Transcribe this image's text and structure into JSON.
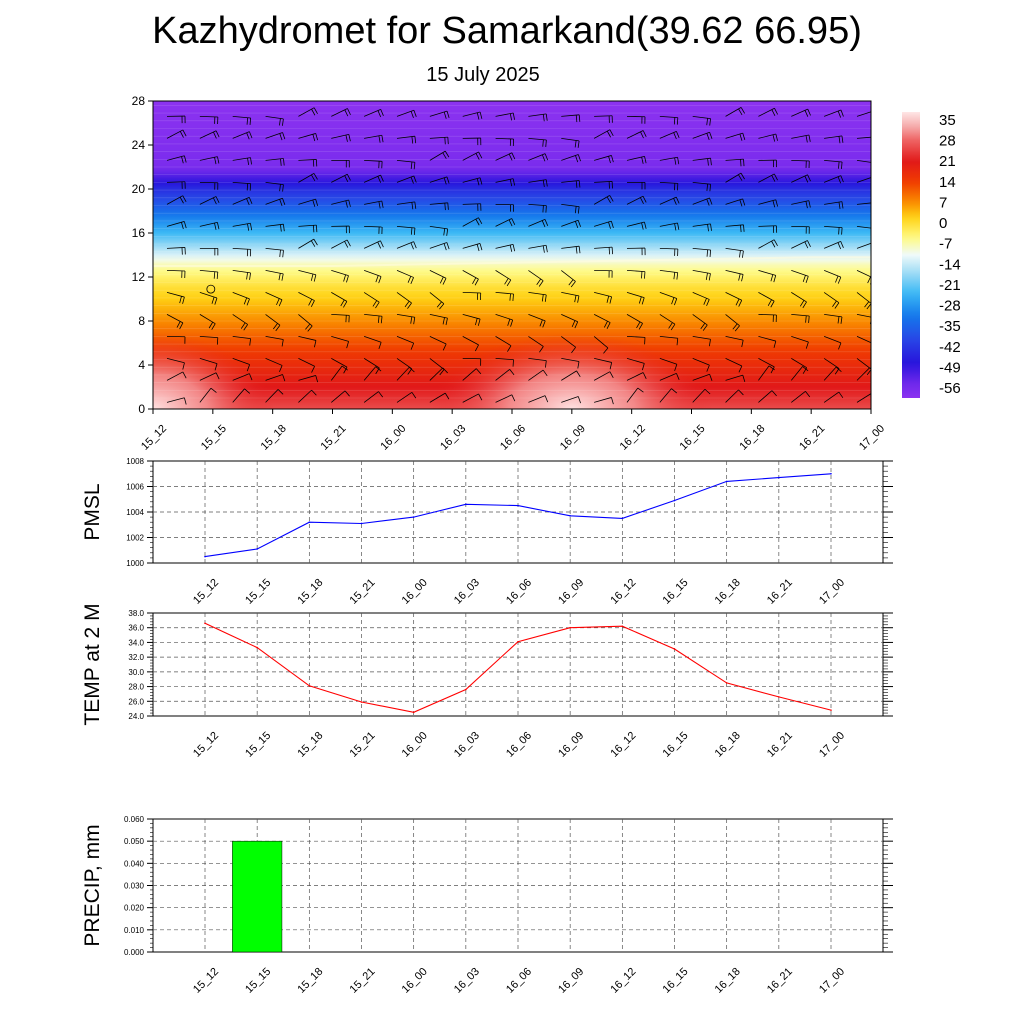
{
  "title": "Kazhydromet for Samarkand(39.62 66.95)",
  "subtitle": "15 July 2025",
  "time_labels": [
    "15_12",
    "15_15",
    "15_18",
    "15_21",
    "16_00",
    "16_03",
    "16_06",
    "16_09",
    "16_12",
    "16_15",
    "16_18",
    "16_21",
    "17_00"
  ],
  "chart_data": [
    {
      "type": "heatmap",
      "x": [
        "15_12",
        "15_15",
        "15_18",
        "15_21",
        "16_00",
        "16_03",
        "16_06",
        "16_09",
        "16_12",
        "16_15",
        "16_18",
        "16_21",
        "17_00"
      ],
      "y_ticks": [
        0,
        4,
        8,
        12,
        16,
        20,
        24,
        28
      ],
      "ylim": [
        0,
        28
      ],
      "colorbar_ticks": [
        "35",
        "28",
        "21",
        "14",
        "7",
        "0",
        "-7",
        "-14",
        "-21",
        "-28",
        "-35",
        "-42",
        "-49",
        "-56"
      ],
      "colorbar_range": [
        -60,
        38
      ],
      "freezing_level": [
        13.0,
        13.0,
        13.0,
        13.0,
        13.1,
        13.2,
        13.3,
        13.4,
        13.5,
        13.6,
        13.7,
        13.8,
        13.8
      ],
      "surface_warm_centers": [
        "15_12",
        "16_09"
      ],
      "overlay": "wind barbs",
      "grid": false
    },
    {
      "type": "line",
      "ylabel": "PMSL",
      "x": [
        "15_12",
        "15_15",
        "15_18",
        "15_21",
        "16_00",
        "16_03",
        "16_06",
        "16_09",
        "16_12",
        "16_15",
        "16_18",
        "16_21",
        "17_00"
      ],
      "y_ticks": [
        "1000",
        "1002",
        "1004",
        "1006",
        "1008"
      ],
      "ylim": [
        1000,
        1008
      ],
      "series": [
        {
          "values": [
            1000.5,
            1001.1,
            1003.2,
            1003.1,
            1003.6,
            1004.6,
            1004.5,
            1003.7,
            1003.5,
            1004.9,
            1006.4,
            1006.7,
            1007.0
          ],
          "color": "#0000ff"
        }
      ],
      "grid": true
    },
    {
      "type": "line",
      "ylabel": "TEMP at 2 M",
      "x": [
        "15_12",
        "15_15",
        "15_18",
        "15_21",
        "16_00",
        "16_03",
        "16_06",
        "16_09",
        "16_12",
        "16_15",
        "16_18",
        "16_21",
        "17_00"
      ],
      "y_ticks": [
        "24.0",
        "26.0",
        "28.0",
        "30.0",
        "32.0",
        "34.0",
        "36.0",
        "38.0"
      ],
      "ylim": [
        24,
        38
      ],
      "series": [
        {
          "values": [
            36.6,
            33.3,
            28.1,
            25.9,
            24.5,
            27.6,
            34.1,
            36.0,
            36.2,
            33.1,
            28.5,
            26.6,
            24.8
          ],
          "color": "#ff0000"
        }
      ],
      "grid": true
    },
    {
      "type": "bar",
      "ylabel": "PRECIP, mm",
      "categories": [
        "15_12",
        "15_15",
        "15_18",
        "15_21",
        "16_00",
        "16_03",
        "16_06",
        "16_09",
        "16_12",
        "16_15",
        "16_18",
        "16_21",
        "17_00"
      ],
      "values": [
        0,
        0.05,
        0,
        0,
        0,
        0,
        0,
        0,
        0,
        0,
        0,
        0,
        0
      ],
      "y_ticks": [
        "0.000",
        "0.010",
        "0.020",
        "0.030",
        "0.040",
        "0.050",
        "0.060"
      ],
      "ylim": [
        0,
        0.06
      ],
      "bar_color": "#00ff00",
      "grid": true
    }
  ]
}
